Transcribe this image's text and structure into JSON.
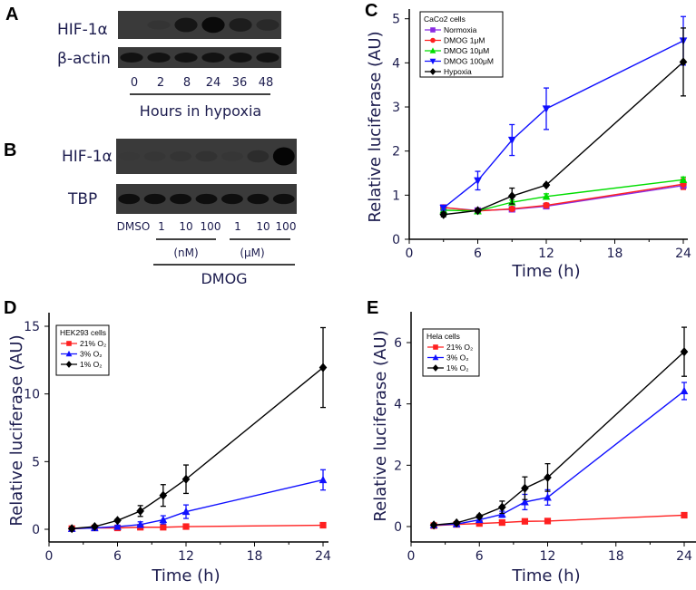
{
  "panels": {
    "a": "A",
    "b": "B",
    "c": "C",
    "d": "D",
    "e": "E"
  },
  "blot_a": {
    "rows": [
      "HIF-1α",
      "β-actin"
    ],
    "lanes": [
      "0",
      "2",
      "8",
      "24",
      "36",
      "48"
    ],
    "xlabel": "Hours in hypoxia",
    "hif_intensity": [
      0.02,
      0.25,
      0.8,
      0.95,
      0.7,
      0.5
    ],
    "actin_intensity": [
      0.85,
      0.85,
      0.85,
      0.85,
      0.85,
      0.85
    ]
  },
  "blot_b": {
    "rows": [
      "HIF-1α",
      "TBP"
    ],
    "lanes": [
      "DMSO",
      "1",
      "10",
      "100",
      "1",
      "10",
      "100"
    ],
    "unit_nm": "(nM)",
    "unit_um": "(μM)",
    "treatment": "DMOG",
    "hif_intensity": [
      0.1,
      0.2,
      0.25,
      0.3,
      0.2,
      0.45,
      1.0
    ],
    "tbp_intensity": [
      0.9,
      0.9,
      0.9,
      0.9,
      0.9,
      0.9,
      0.9
    ]
  },
  "chart_data": [
    {
      "type": "line",
      "title": "CaCo2 cells",
      "xlabel": "Time (h)",
      "ylabel": "Relative  luciferase (AU)",
      "xlim": [
        0,
        24
      ],
      "ylim": [
        0,
        5
      ],
      "xticks": [
        "0",
        "6",
        "12",
        "18",
        "24"
      ],
      "yticks": [
        "0",
        "1",
        "2",
        "3",
        "4",
        "5"
      ],
      "x": [
        3,
        6,
        9,
        12,
        24
      ],
      "series": [
        {
          "name": "Normoxia",
          "color": "#8a2be2",
          "marker": "square",
          "values": [
            0.72,
            0.65,
            0.68,
            0.75,
            1.22
          ],
          "errors": [
            0.03,
            0.02,
            0.03,
            0.04,
            0.08
          ]
        },
        {
          "name": "DMOG 1μM",
          "color": "#ff2020",
          "marker": "circle",
          "values": [
            0.72,
            0.64,
            0.69,
            0.77,
            1.25
          ],
          "errors": [
            0.04,
            0.03,
            0.04,
            0.05,
            0.12
          ]
        },
        {
          "name": "DMOG 10μM",
          "color": "#00dd00",
          "marker": "triangle-up",
          "values": [
            0.66,
            0.64,
            0.84,
            0.97,
            1.35
          ],
          "errors": [
            0.03,
            0.03,
            0.05,
            0.06,
            0.06
          ]
        },
        {
          "name": "DMOG 100μM",
          "color": "#1010ff",
          "marker": "triangle-down",
          "values": [
            0.71,
            1.33,
            2.25,
            2.96,
            4.5
          ],
          "errors": [
            0.05,
            0.21,
            0.35,
            0.47,
            0.55
          ]
        },
        {
          "name": "Hypoxia",
          "color": "#000000",
          "marker": "diamond",
          "values": [
            0.56,
            0.65,
            0.98,
            1.23,
            4.02
          ],
          "errors": [
            0.05,
            0.03,
            0.18,
            0.03,
            0.77
          ]
        }
      ]
    },
    {
      "type": "line",
      "title": "HEK293 cells",
      "xlabel": "Time (h)",
      "ylabel": "Relative  luciferase (AU)",
      "xlim": [
        0,
        24
      ],
      "ylim": [
        -1,
        15.5
      ],
      "xticks": [
        "0",
        "6",
        "12",
        "18",
        "24"
      ],
      "yticks": [
        "0",
        "5",
        "10",
        "15"
      ],
      "x": [
        2,
        4,
        6,
        8,
        10,
        12,
        24
      ],
      "series": [
        {
          "name": "21% O₂",
          "color": "#ff2020",
          "marker": "square",
          "values": [
            0.05,
            0.1,
            0.1,
            0.15,
            0.15,
            0.2,
            0.3
          ],
          "errors": [
            0.02,
            0.02,
            0.02,
            0.03,
            0.03,
            0.04,
            0.06
          ]
        },
        {
          "name": "3% O₂",
          "color": "#1010ff",
          "marker": "triangle-up",
          "values": [
            0.05,
            0.1,
            0.2,
            0.35,
            0.7,
            1.3,
            3.65
          ],
          "errors": [
            0.02,
            0.03,
            0.1,
            0.2,
            0.3,
            0.5,
            0.75
          ]
        },
        {
          "name": "1% O₂",
          "color": "#000000",
          "marker": "diamond",
          "values": [
            0.05,
            0.2,
            0.65,
            1.35,
            2.5,
            3.7,
            11.95
          ],
          "errors": [
            0.02,
            0.05,
            0.1,
            0.4,
            0.8,
            1.05,
            2.95
          ]
        }
      ]
    },
    {
      "type": "line",
      "title": "Hela cells",
      "xlabel": "Time (h)",
      "ylabel": "Relative  luciferase (AU)",
      "xlim": [
        0,
        24
      ],
      "ylim": [
        -0.5,
        6.9
      ],
      "xticks": [
        "0",
        "6",
        "12",
        "18",
        "24"
      ],
      "yticks": [
        "0",
        "2",
        "4",
        "6"
      ],
      "x": [
        2,
        4,
        6,
        8,
        10,
        12,
        24
      ],
      "series": [
        {
          "name": "21% O₂",
          "color": "#ff2020",
          "marker": "square",
          "values": [
            0.03,
            0.07,
            0.1,
            0.13,
            0.17,
            0.18,
            0.37
          ],
          "errors": [
            0.01,
            0.01,
            0.02,
            0.02,
            0.02,
            0.03,
            0.03
          ]
        },
        {
          "name": "3% O₂",
          "color": "#1010ff",
          "marker": "triangle-up",
          "values": [
            0.05,
            0.08,
            0.22,
            0.4,
            0.8,
            0.95,
            4.42
          ],
          "errors": [
            0.02,
            0.02,
            0.05,
            0.1,
            0.25,
            0.25,
            0.28
          ]
        },
        {
          "name": "1% O₂",
          "color": "#000000",
          "marker": "diamond",
          "values": [
            0.05,
            0.12,
            0.33,
            0.63,
            1.25,
            1.6,
            5.7
          ],
          "errors": [
            0.01,
            0.03,
            0.05,
            0.2,
            0.37,
            0.45,
            0.8
          ]
        }
      ]
    }
  ]
}
